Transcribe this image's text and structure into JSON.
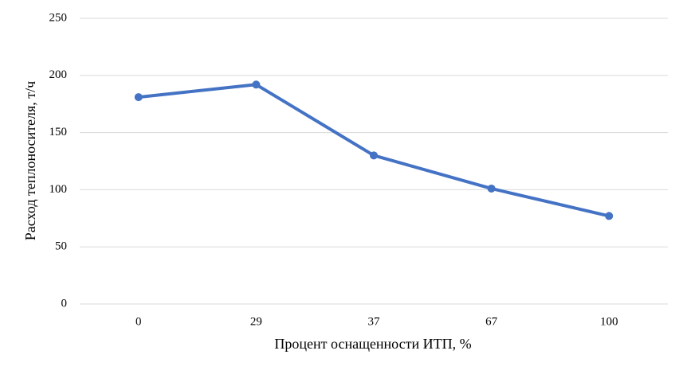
{
  "chart_data": {
    "type": "line",
    "xlabel": "Процент оснащенности ИТП, %",
    "ylabel": "Расход теплоносителя, т/ч",
    "categories": [
      "0",
      "29",
      "37",
      "67",
      "100"
    ],
    "values": [
      181,
      192,
      130,
      101,
      77
    ],
    "color": "#4472c4",
    "ylim": [
      0,
      250
    ],
    "yticks": [
      0,
      50,
      100,
      150,
      200,
      250
    ],
    "grid": true
  }
}
